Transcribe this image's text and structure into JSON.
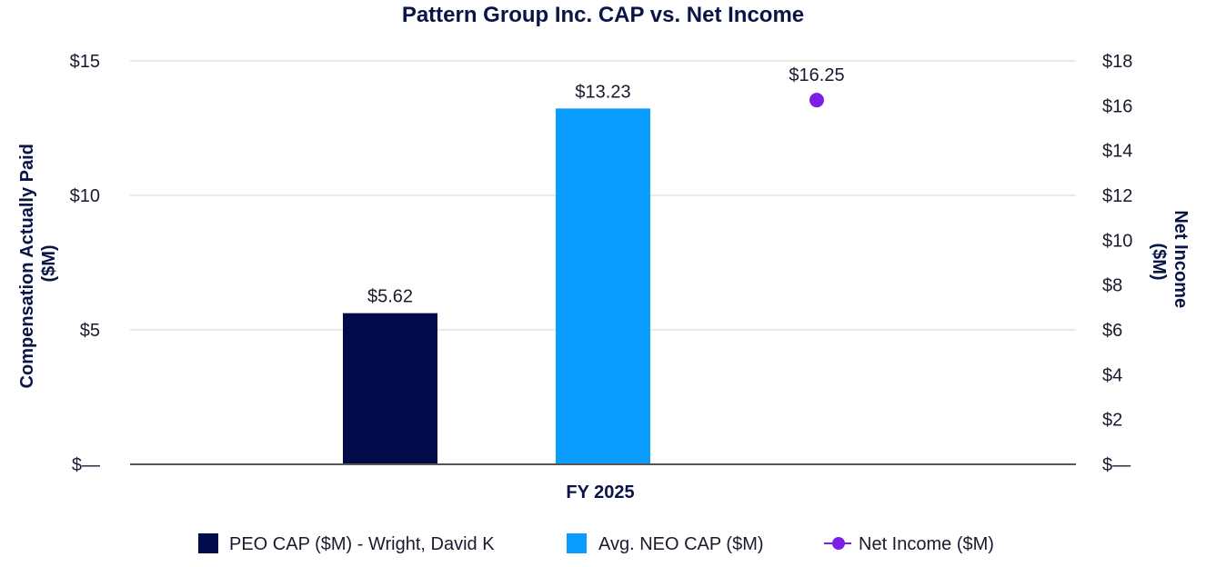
{
  "chart_data": {
    "type": "bar",
    "title": "Pattern Group Inc. CAP vs. Net Income",
    "category": "FY 2025",
    "ylabel_left": "Compensation Actually Paid ($M)",
    "ylabel_right": "Net Income ($M)",
    "ylim_left": [
      0,
      15
    ],
    "ylim_right": [
      0,
      18
    ],
    "left_ticks": [
      {
        "value": 0,
        "label": "$—"
      },
      {
        "value": 5,
        "label": "$5"
      },
      {
        "value": 10,
        "label": "$10"
      },
      {
        "value": 15,
        "label": "$15"
      }
    ],
    "right_ticks": [
      {
        "value": 0,
        "label": "$—"
      },
      {
        "value": 2,
        "label": "$2"
      },
      {
        "value": 4,
        "label": "$4"
      },
      {
        "value": 6,
        "label": "$6"
      },
      {
        "value": 8,
        "label": "$8"
      },
      {
        "value": 10,
        "label": "$10"
      },
      {
        "value": 12,
        "label": "$12"
      },
      {
        "value": 14,
        "label": "$14"
      },
      {
        "value": 16,
        "label": "$16"
      },
      {
        "value": 18,
        "label": "$18"
      }
    ],
    "series": [
      {
        "name": "PEO CAP ($M) - Wright, David K",
        "kind": "bar",
        "axis": "left",
        "color": "#020b4a",
        "value": 5.62,
        "label": "$5.62"
      },
      {
        "name": "Avg. NEO CAP ($M)",
        "kind": "bar",
        "axis": "left",
        "color": "#0a9cff",
        "value": 13.23,
        "label": "$13.23"
      },
      {
        "name": "Net Income ($M)",
        "kind": "point",
        "axis": "right",
        "color": "#7a1fe6",
        "value": 16.25,
        "label": "$16.25"
      }
    ],
    "grid": true,
    "legend_position": "bottom"
  }
}
